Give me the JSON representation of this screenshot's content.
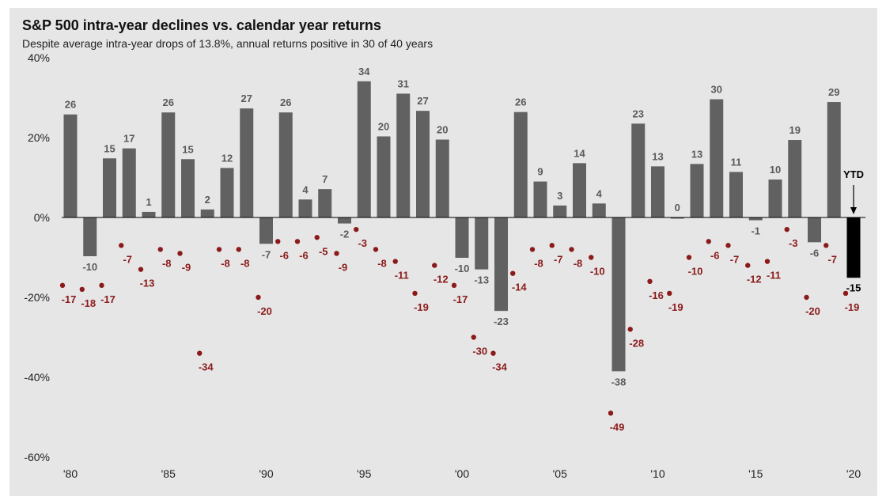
{
  "chart_data": {
    "type": "bar",
    "title": "S&P 500 intra-year declines vs. calendar year returns",
    "subtitle": "Despite average intra-year drops of 13.8%, annual returns positive in 30 of 40 years",
    "ylim": [
      -60,
      40
    ],
    "y_ticks": [
      {
        "value": 40,
        "label": "40%"
      },
      {
        "value": 20,
        "label": "20%"
      },
      {
        "value": 0,
        "label": "0%"
      },
      {
        "value": -20,
        "label": "-20%"
      },
      {
        "value": -40,
        "label": "-40%"
      },
      {
        "value": -60,
        "label": "-60%"
      }
    ],
    "x_ticks": [
      {
        "year": 1980,
        "label": "'80"
      },
      {
        "year": 1985,
        "label": "'85"
      },
      {
        "year": 1990,
        "label": "'90"
      },
      {
        "year": 1995,
        "label": "'95"
      },
      {
        "year": 2000,
        "label": "'00"
      },
      {
        "year": 2005,
        "label": "'05"
      },
      {
        "year": 2010,
        "label": "'10"
      },
      {
        "year": 2015,
        "label": "'15"
      },
      {
        "year": 2020,
        "label": "'20"
      }
    ],
    "years": [
      1980,
      1981,
      1982,
      1983,
      1984,
      1985,
      1986,
      1987,
      1988,
      1989,
      1990,
      1991,
      1992,
      1993,
      1994,
      1995,
      1996,
      1997,
      1998,
      1999,
      2000,
      2001,
      2002,
      2003,
      2004,
      2005,
      2006,
      2007,
      2008,
      2009,
      2010,
      2011,
      2012,
      2013,
      2014,
      2015,
      2016,
      2017,
      2018,
      2019,
      2020
    ],
    "series": [
      {
        "name": "Calendar year return",
        "color": "#616161",
        "values": [
          25.8,
          -9.7,
          14.8,
          17.3,
          1.4,
          26.3,
          14.6,
          2.0,
          12.4,
          27.3,
          -6.6,
          26.3,
          4.5,
          7.1,
          -1.5,
          34.1,
          20.3,
          31.0,
          26.7,
          19.5,
          -10.1,
          -13.0,
          -23.4,
          26.4,
          9.0,
          3.0,
          13.6,
          3.5,
          -38.5,
          23.5,
          12.8,
          0.0,
          13.4,
          29.6,
          11.4,
          -0.7,
          9.5,
          19.4,
          -6.2,
          28.9,
          -15.1
        ],
        "labels": [
          "26",
          "-10",
          "15",
          "17",
          "1",
          "26",
          "15",
          "2",
          "12",
          "27",
          "-7",
          "26",
          "4",
          "7",
          "-2",
          "34",
          "20",
          "31",
          "27",
          "20",
          "-10",
          "-13",
          "-23",
          "26",
          "9",
          "3",
          "14",
          "4",
          "-38",
          "23",
          "13",
          "0",
          "13",
          "30",
          "11",
          "-1",
          "10",
          "19",
          "-6",
          "29",
          "-15"
        ]
      },
      {
        "name": "Intra-year decline",
        "color": "#8b1a1a",
        "values": [
          -17,
          -18,
          -17,
          -7,
          -13,
          -8,
          -9,
          -34,
          -8,
          -8,
          -20,
          -6,
          -6,
          -5,
          -9,
          -3,
          -8,
          -11,
          -19,
          -12,
          -17,
          -30,
          -34,
          -14,
          -8,
          -7,
          -8,
          -10,
          -49,
          -28,
          -16,
          -19,
          -10,
          -6,
          -7,
          -12,
          -11,
          -3,
          -20,
          -7,
          -19
        ],
        "labels": [
          "-17",
          "-18",
          "-17",
          "-7",
          "-13",
          "-8",
          "-9",
          "-34",
          "-8",
          "-8",
          "-20",
          "-6",
          "-6",
          "-5",
          "-9",
          "-3",
          "-8",
          "-11",
          "-19",
          "-12",
          "-17",
          "-30",
          "-34",
          "-14",
          "-8",
          "-7",
          "-8",
          "-10",
          "-49",
          "-28",
          "-16",
          "-19",
          "-10",
          "-6",
          "-7",
          "-12",
          "-11",
          "-3",
          "-20",
          "-7",
          "-19"
        ]
      }
    ],
    "highlight_last_bar_color": "#000000",
    "ytd_label": "YTD",
    "grid": false
  }
}
